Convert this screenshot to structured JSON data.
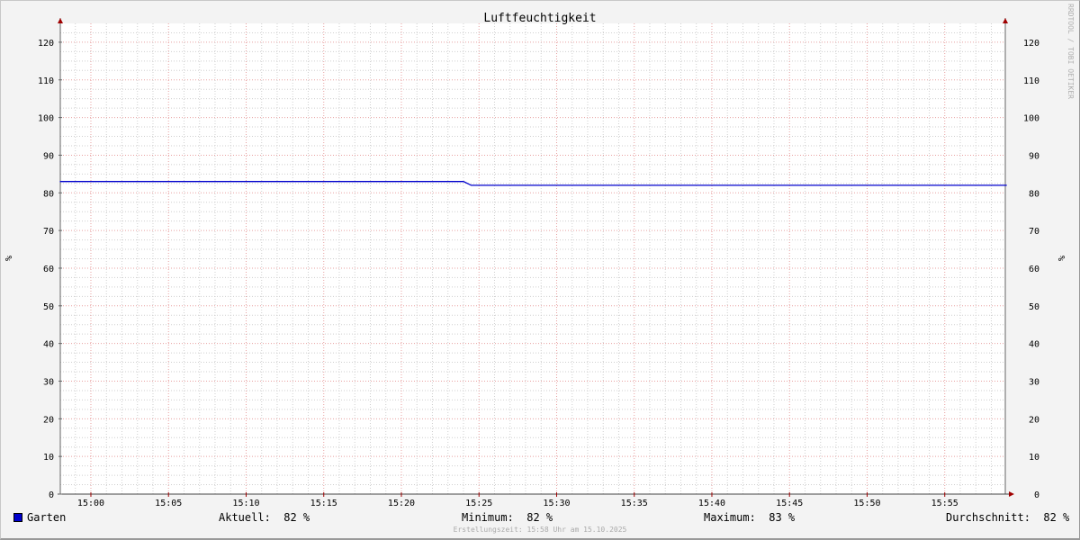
{
  "chart_data": {
    "type": "line",
    "title": "Luftfeuchtigkeit",
    "ylabel_left": "%",
    "ylabel_right": "%",
    "ylim": [
      0,
      125
    ],
    "yticks": [
      0,
      10,
      20,
      30,
      40,
      50,
      60,
      70,
      80,
      90,
      100,
      110,
      120
    ],
    "xlim": [
      "14:58",
      "15:59"
    ],
    "xticks": [
      "15:00",
      "15:05",
      "15:10",
      "15:15",
      "15:20",
      "15:25",
      "15:30",
      "15:35",
      "15:40",
      "15:45",
      "15:50",
      "15:55"
    ],
    "grid": true,
    "series": [
      {
        "name": "Garten",
        "color": "#0000cc",
        "points": [
          [
            "14:58",
            83
          ],
          [
            "15:24",
            83
          ],
          [
            "15:24.5",
            82
          ],
          [
            "15:59",
            82
          ]
        ]
      }
    ],
    "legend": {
      "position": "bottom",
      "name": "Garten",
      "color": "#0000cc",
      "stats": [
        {
          "label": "Aktuell:",
          "value": "82 %"
        },
        {
          "label": "Minimum:",
          "value": "82 %"
        },
        {
          "label": "Maximum:",
          "value": "83 %"
        },
        {
          "label": "Durchschnitt:",
          "value": "82 %"
        }
      ]
    },
    "footer": "Erstellungszeit: 15:58 Uhr am 15.10.2025",
    "watermark": "RRDTOOL / TOBI OETIKER"
  }
}
